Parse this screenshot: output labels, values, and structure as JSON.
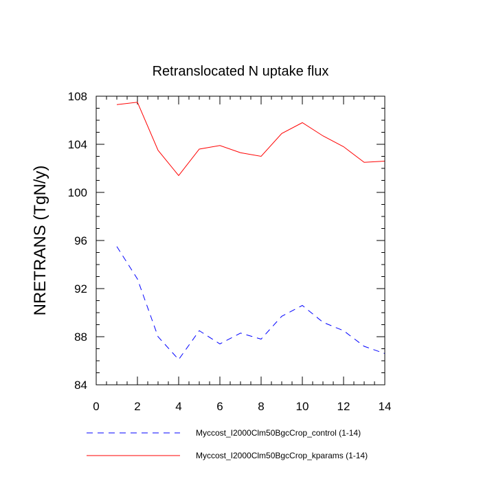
{
  "chart_data": {
    "type": "line",
    "title": "Retranslocated N uptake flux",
    "xlabel": "",
    "ylabel": "NRETRANS  (TgN/y)",
    "xlim": [
      0,
      14
    ],
    "ylim": [
      84,
      108
    ],
    "x_ticks": [
      0,
      2,
      4,
      6,
      8,
      10,
      12,
      14
    ],
    "y_ticks": [
      84,
      88,
      92,
      96,
      100,
      104,
      108
    ],
    "grid": false,
    "legend_position": "bottom",
    "x": [
      1,
      2,
      3,
      4,
      5,
      6,
      7,
      8,
      9,
      10,
      11,
      12,
      13,
      14
    ],
    "series": [
      {
        "name": "Myccost_I2000Clm50BgcCrop_control (1-14)",
        "color": "#0000ff",
        "dash": "dashed",
        "values": [
          95.5,
          92.8,
          88.0,
          86.1,
          88.5,
          87.4,
          88.3,
          87.8,
          89.7,
          90.6,
          89.2,
          88.5,
          87.2,
          86.6
        ]
      },
      {
        "name": "Myccost_I2000Clm50BgcCrop_kparams (1-14)",
        "color": "#ff0000",
        "dash": "solid",
        "values": [
          107.3,
          107.5,
          103.5,
          101.4,
          103.6,
          103.9,
          103.3,
          103.0,
          104.9,
          105.8,
          104.7,
          103.8,
          102.5,
          102.6
        ]
      }
    ]
  }
}
